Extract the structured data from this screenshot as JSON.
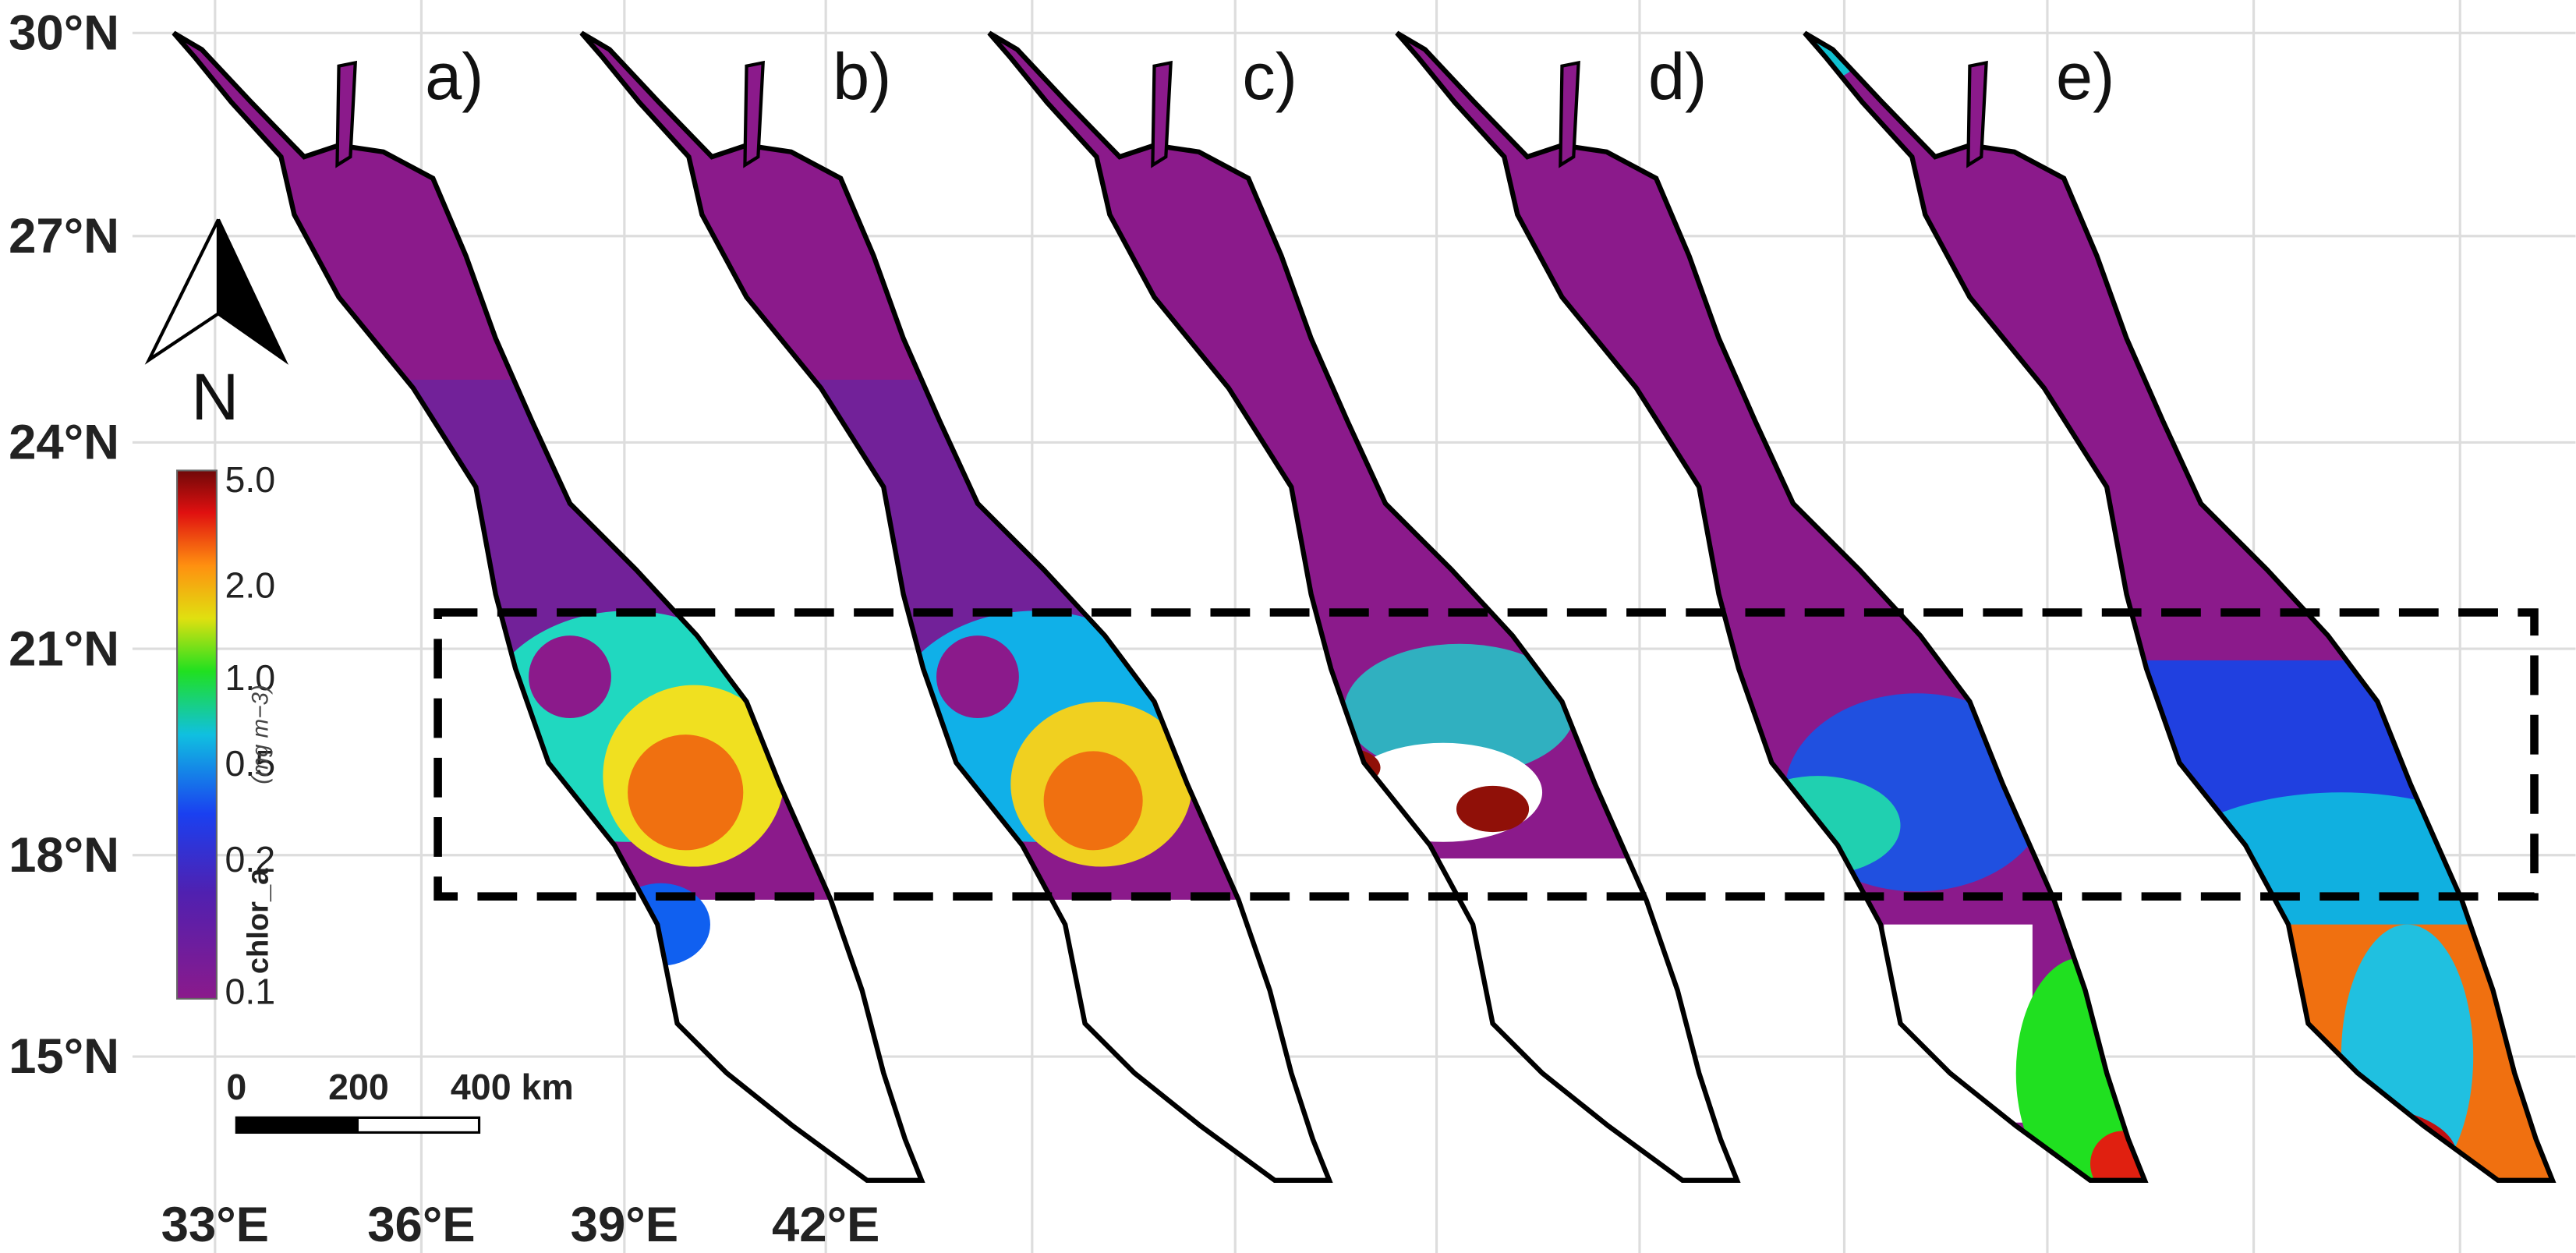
{
  "map": {
    "panels": [
      "a)",
      "b)",
      "c)",
      "d)",
      "e)"
    ],
    "lat_labels": [
      "30°N",
      "27°N",
      "24°N",
      "21°N",
      "18°N",
      "15°N"
    ],
    "lon_labels": [
      "33°E",
      "36°E",
      "39°E",
      "42°E"
    ],
    "north_arrow": "N",
    "colorbar": {
      "label": "chlor_a",
      "unit": "(mg m−3)",
      "ticks": [
        "5.0",
        "2.0",
        "1.0",
        "0.5",
        "0.2",
        "0.1"
      ]
    },
    "scalebar": {
      "labels": [
        "0",
        "200",
        "400 km"
      ]
    }
  }
}
